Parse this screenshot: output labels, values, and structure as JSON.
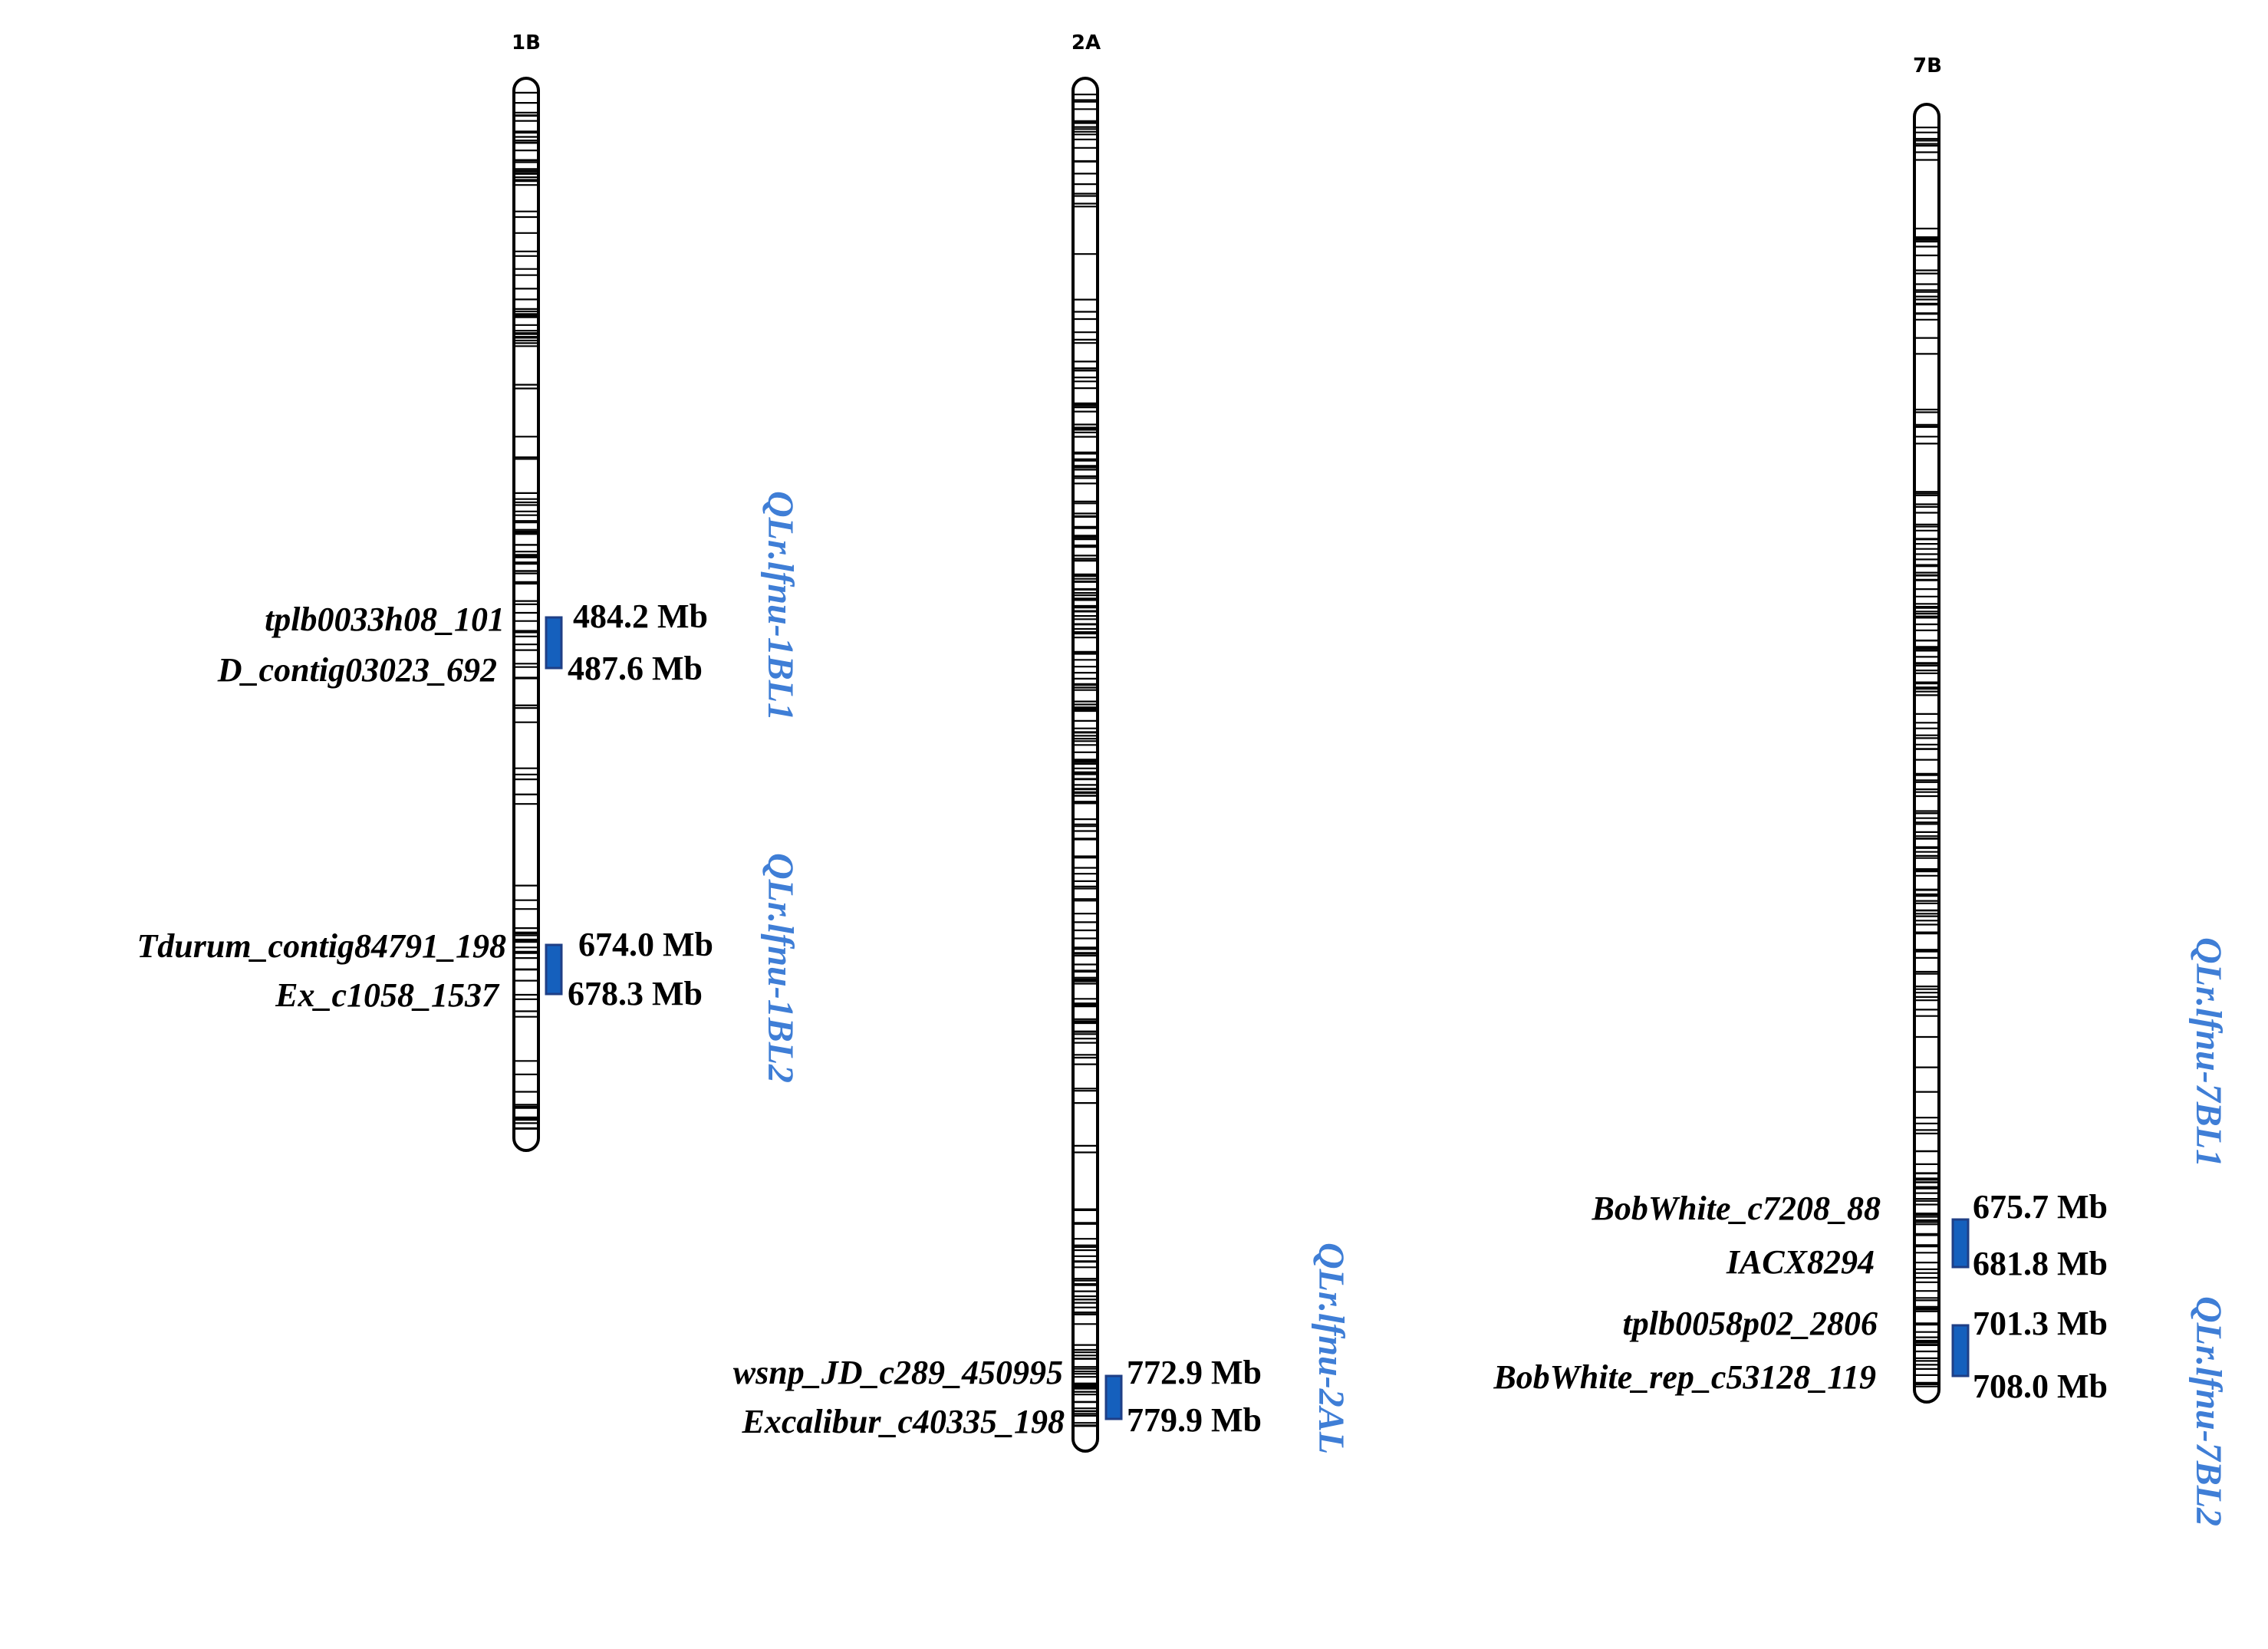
{
  "colors": {
    "qtl_box": "#1560BD",
    "qtl_label": "#3F7ED6"
  },
  "chromosomes": [
    {
      "id": "1B",
      "title": "1B",
      "markers": [
        {
          "name": "tplb0033h08_101",
          "position": "484.2 Mb"
        },
        {
          "name": "D_contig03023_692",
          "position": "487.6 Mb"
        },
        {
          "name": "Tdurum_contig84791_198",
          "position": "674.0 Mb"
        },
        {
          "name": "Ex_c1058_1537",
          "position": "678.3 Mb"
        }
      ],
      "qtls": [
        "QLr.lfnu-1BL1",
        "QLr.lfnu-1BL2"
      ]
    },
    {
      "id": "2A",
      "title": "2A",
      "markers": [
        {
          "name": "wsnp_JD_c289_450995",
          "position": "772.9 Mb"
        },
        {
          "name": "Excalibur_c40335_198",
          "position": "779.9 Mb"
        }
      ],
      "qtls": [
        "QLr.lfnu-2AL"
      ]
    },
    {
      "id": "7B",
      "title": "7B",
      "markers": [
        {
          "name": "BobWhite_c7208_88",
          "position": "675.7 Mb"
        },
        {
          "name": "IACX8294",
          "position": "681.8 Mb"
        },
        {
          "name": "tplb0058p02_2806",
          "position": "701.3 Mb"
        },
        {
          "name": "BobWhite_rep_c53128_119",
          "position": "708.0 Mb"
        }
      ],
      "qtls": [
        "QLr.lfnu-7BL1",
        "QLr.lfnu-7BL2"
      ]
    }
  ]
}
